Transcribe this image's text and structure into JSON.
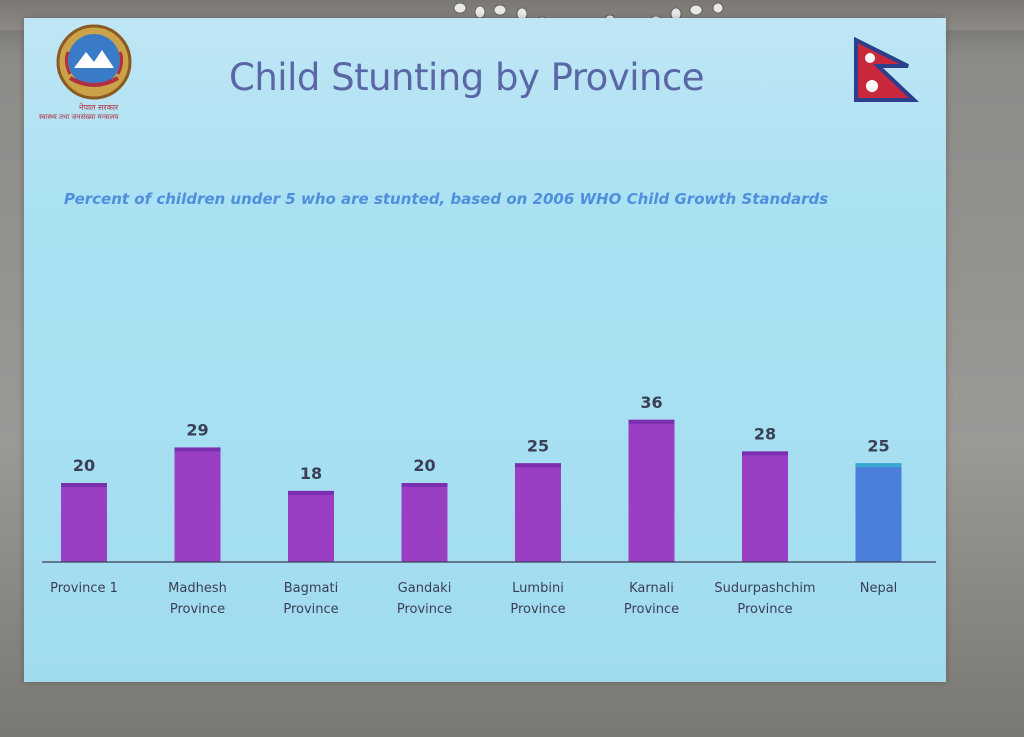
{
  "slide": {
    "title": "Child Stunting by Province",
    "subtitle": "Percent of children under 5 who are stunted, based on 2006 WHO Child Growth Standards",
    "emblem_line1": "नेपाल सरकार",
    "emblem_line2": "स्वास्थ्य तथा जनसंख्या मन्त्रालय"
  },
  "colors": {
    "province_bar": "#9a3fc4",
    "province_bar_top": "#7a2fb0",
    "nepal_bar": "#4c7fdc",
    "nepal_bar_top": "#3aa6d4",
    "axis": "#3a3f55",
    "background": "#a9e1f3"
  },
  "chart_data": {
    "type": "bar",
    "categories": [
      [
        "Province 1"
      ],
      [
        "Madhesh",
        "Province"
      ],
      [
        "Bagmati",
        "Province"
      ],
      [
        "Gandaki",
        "Province"
      ],
      [
        "Lumbini",
        "Province"
      ],
      [
        "Karnali",
        "Province"
      ],
      [
        "Sudurpashchim",
        "Province"
      ],
      [
        "Nepal"
      ]
    ],
    "values": [
      20,
      29,
      18,
      20,
      25,
      36,
      28,
      25
    ],
    "highlight": [
      false,
      false,
      false,
      false,
      false,
      false,
      false,
      true
    ],
    "ylim": [
      0,
      40
    ],
    "data_labels": true,
    "grid": false,
    "legend": false
  }
}
